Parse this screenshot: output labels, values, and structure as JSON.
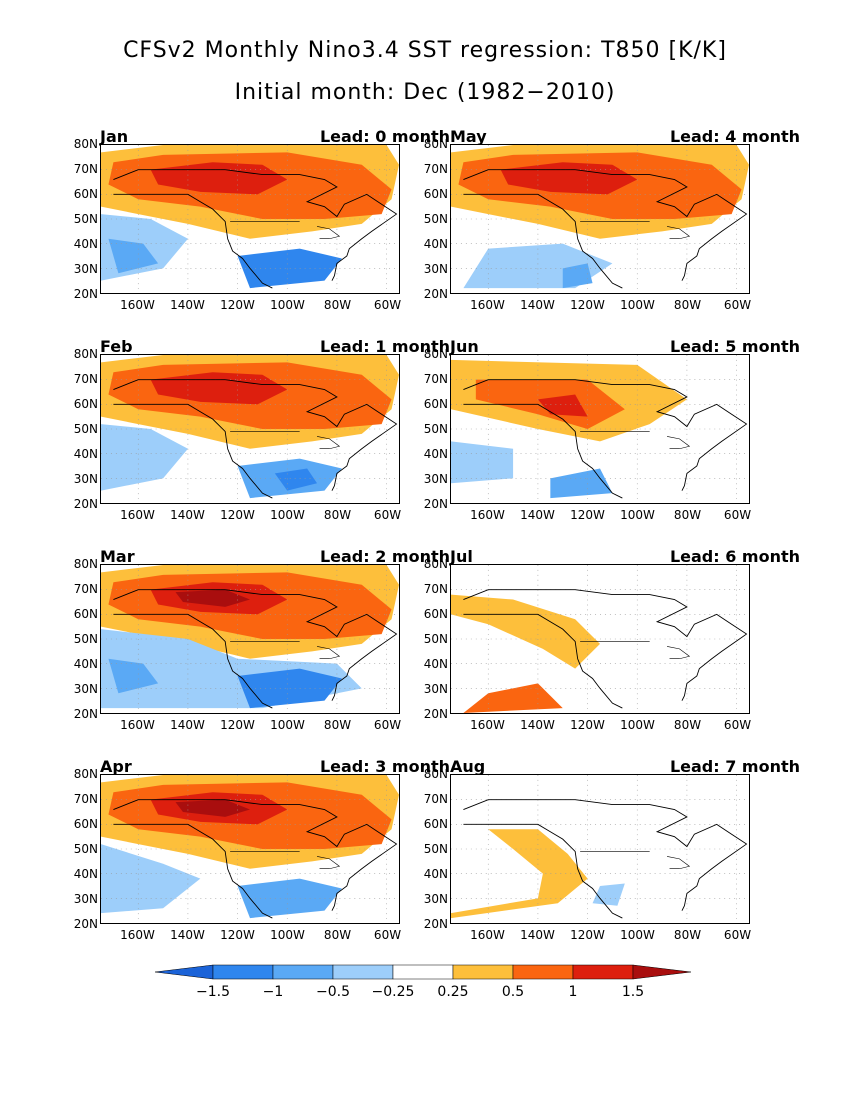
{
  "title": "CFSv2 Monthly Nino3.4 SST regression: T850 [K/K]",
  "subtitle": "Initial month: Dec (1982−2010)",
  "lat_labels": [
    "80N",
    "70N",
    "60N",
    "50N",
    "40N",
    "30N",
    "20N"
  ],
  "lon_labels": [
    "160W",
    "140W",
    "120W",
    "100W",
    "80W",
    "60W"
  ],
  "colors": {
    "n150": "#1b63d8",
    "n100": "#2f86ee",
    "n050": "#5aa9f5",
    "n025": "#9dcefa",
    "p025": "#fdbf3b",
    "p050": "#fa6510",
    "p100": "#dd1f0e",
    "p150": "#a90e0e",
    "coast": "#000000"
  },
  "colorbar": {
    "levels": [
      "−1.5",
      "−1",
      "−0.5",
      "−0.25",
      "0.25",
      "0.5",
      "1",
      "1.5"
    ],
    "colors": [
      "#1b63d8",
      "#2f86ee",
      "#5aa9f5",
      "#9dcefa",
      "#ffffff",
      "#fdbf3b",
      "#fa6510",
      "#dd1f0e",
      "#a90e0e"
    ]
  },
  "panels": [
    {
      "month": "Jan",
      "lead": "Lead: 0 month",
      "strength": 2,
      "cold": 2,
      "pattern": "jan"
    },
    {
      "month": "May",
      "lead": "Lead: 4 month",
      "strength": 2,
      "cold": 2,
      "pattern": "may"
    },
    {
      "month": "Feb",
      "lead": "Lead: 1 month",
      "strength": 3,
      "cold": 2,
      "pattern": "feb"
    },
    {
      "month": "Jun",
      "lead": "Lead: 5 month",
      "strength": 2,
      "cold": 2,
      "pattern": "jun"
    },
    {
      "month": "Mar",
      "lead": "Lead: 2 month",
      "strength": 3,
      "cold": 2,
      "pattern": "mar"
    },
    {
      "month": "Jul",
      "lead": "Lead: 6 month",
      "strength": 1,
      "cold": 1,
      "pattern": "jul"
    },
    {
      "month": "Apr",
      "lead": "Lead: 3 month",
      "strength": 3,
      "cold": 1,
      "pattern": "apr"
    },
    {
      "month": "Aug",
      "lead": "Lead: 7 month",
      "strength": 0,
      "cold": 1,
      "pattern": "aug"
    }
  ]
}
